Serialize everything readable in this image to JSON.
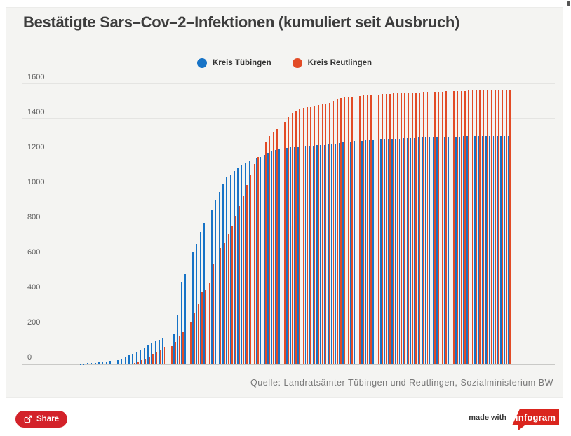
{
  "title": "Bestätigte Sars–Cov–2–Infektionen (kumuliert seit Ausbruch)",
  "legend": [
    {
      "label": "Kreis Tübingen",
      "color": "#1773c6"
    },
    {
      "label": "Kreis Reutlingen",
      "color": "#e24b26"
    }
  ],
  "source": "Quelle: Landratsämter Tübingen und Reutlingen, Sozialministerium BW",
  "footer": {
    "share_label": "Share",
    "made_with": "made with",
    "brand": "infogram"
  },
  "colors": {
    "card_background": "#f4f4f2",
    "share_red": "#d3222a",
    "infogram_red": "#da251e",
    "tuebingen_blue": "#1773c6",
    "reutlingen_orange": "#e24b26"
  },
  "chart_data": {
    "type": "bar",
    "title": "Bestätigte Sars–Cov–2–Infektionen (kumuliert seit Ausbruch)",
    "xlabel": "",
    "ylabel": "",
    "ylim": [
      0,
      1600
    ],
    "yticks": [
      0,
      200,
      400,
      600,
      800,
      1000,
      1200,
      1400,
      1600
    ],
    "grid": true,
    "legend_position": "top",
    "x_tick_labels_visible": false,
    "series": [
      {
        "name": "Kreis Tübingen",
        "color": "#1773c6",
        "values": [
          1,
          2,
          3,
          4,
          5,
          7,
          9,
          12,
          15,
          19,
          24,
          30,
          38,
          47,
          57,
          68,
          80,
          93,
          107,
          118,
          128,
          138,
          150,
          0,
          0,
          172,
          280,
          464,
          512,
          580,
          640,
          684,
          752,
          804,
          856,
          880,
          932,
          980,
          1028,
          1068,
          1080,
          1100,
          1120,
          1132,
          1144,
          1156,
          1164,
          1172,
          1180,
          1192,
          1204,
          1212,
          1220,
          1224,
          1228,
          1232,
          1236,
          1236,
          1240,
          1240,
          1244,
          1244,
          1244,
          1248,
          1248,
          1248,
          1252,
          1256,
          1256,
          1260,
          1264,
          1268,
          1268,
          1272,
          1272,
          1272,
          1276,
          1276,
          1276,
          1276,
          1280,
          1280,
          1284,
          1284,
          1284,
          1284,
          1288,
          1288,
          1288,
          1288,
          1292,
          1292,
          1292,
          1292,
          1292,
          1296,
          1296,
          1296,
          1296,
          1296,
          1296,
          1296,
          1300,
          1300,
          1300,
          1300,
          1300,
          1300,
          1300,
          1300,
          1300,
          1300,
          1300,
          1300,
          1300
        ]
      },
      {
        "name": "Kreis Reutlingen",
        "color": "#e24b26",
        "values": [
          0,
          0,
          0,
          0,
          0,
          0,
          0,
          0,
          0,
          0,
          0,
          0,
          0,
          0,
          6,
          12,
          20,
          30,
          42,
          55,
          68,
          80,
          95,
          0,
          100,
          124,
          160,
          180,
          196,
          236,
          292,
          340,
          412,
          420,
          460,
          572,
          648,
          660,
          692,
          740,
          790,
          844,
          900,
          960,
          1020,
          1080,
          1140,
          1180,
          1220,
          1264,
          1300,
          1320,
          1340,
          1356,
          1380,
          1410,
          1432,
          1444,
          1452,
          1460,
          1464,
          1468,
          1472,
          1476,
          1480,
          1484,
          1488,
          1500,
          1512,
          1516,
          1520,
          1524,
          1524,
          1528,
          1528,
          1532,
          1532,
          1536,
          1536,
          1536,
          1540,
          1540,
          1540,
          1544,
          1544,
          1544,
          1544,
          1548,
          1548,
          1548,
          1548,
          1552,
          1552,
          1552,
          1552,
          1552,
          1552,
          1556,
          1556,
          1556,
          1556,
          1556,
          1556,
          1560,
          1560,
          1560,
          1560,
          1560,
          1560,
          1564,
          1564,
          1564,
          1564,
          1564,
          1565
        ]
      }
    ]
  }
}
